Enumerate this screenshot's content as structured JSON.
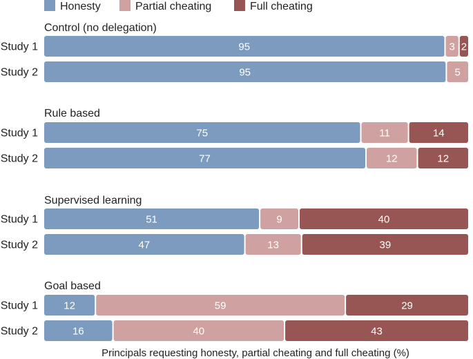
{
  "chart_data": {
    "type": "bar",
    "orientation": "horizontal",
    "stacked": true,
    "xlabel": "Principals requesting honesty, partial cheating and full cheating (%)",
    "xlim": [
      0,
      100
    ],
    "legend_position": "top-left",
    "series": [
      {
        "name": "Honesty",
        "color": "#7d9bbf"
      },
      {
        "name": "Partial cheating",
        "color": "#cfa1a1"
      },
      {
        "name": "Full cheating",
        "color": "#975654"
      }
    ],
    "groups": [
      {
        "title": "Control (no delegation)",
        "rows": [
          {
            "label": "Study 1",
            "values": [
              95,
              3,
              2
            ]
          },
          {
            "label": "Study 2",
            "values": [
              95,
              5,
              0
            ]
          }
        ]
      },
      {
        "title": "Rule based",
        "rows": [
          {
            "label": "Study 1",
            "values": [
              75,
              11,
              14
            ]
          },
          {
            "label": "Study 2",
            "values": [
              77,
              12,
              12
            ]
          }
        ]
      },
      {
        "title": "Supervised learning",
        "rows": [
          {
            "label": "Study 1",
            "values": [
              51,
              9,
              40
            ]
          },
          {
            "label": "Study 2",
            "values": [
              47,
              13,
              39
            ]
          }
        ]
      },
      {
        "title": "Goal based",
        "rows": [
          {
            "label": "Study 1",
            "values": [
              12,
              59,
              29
            ]
          },
          {
            "label": "Study 2",
            "values": [
              16,
              40,
              43
            ]
          }
        ]
      }
    ]
  }
}
